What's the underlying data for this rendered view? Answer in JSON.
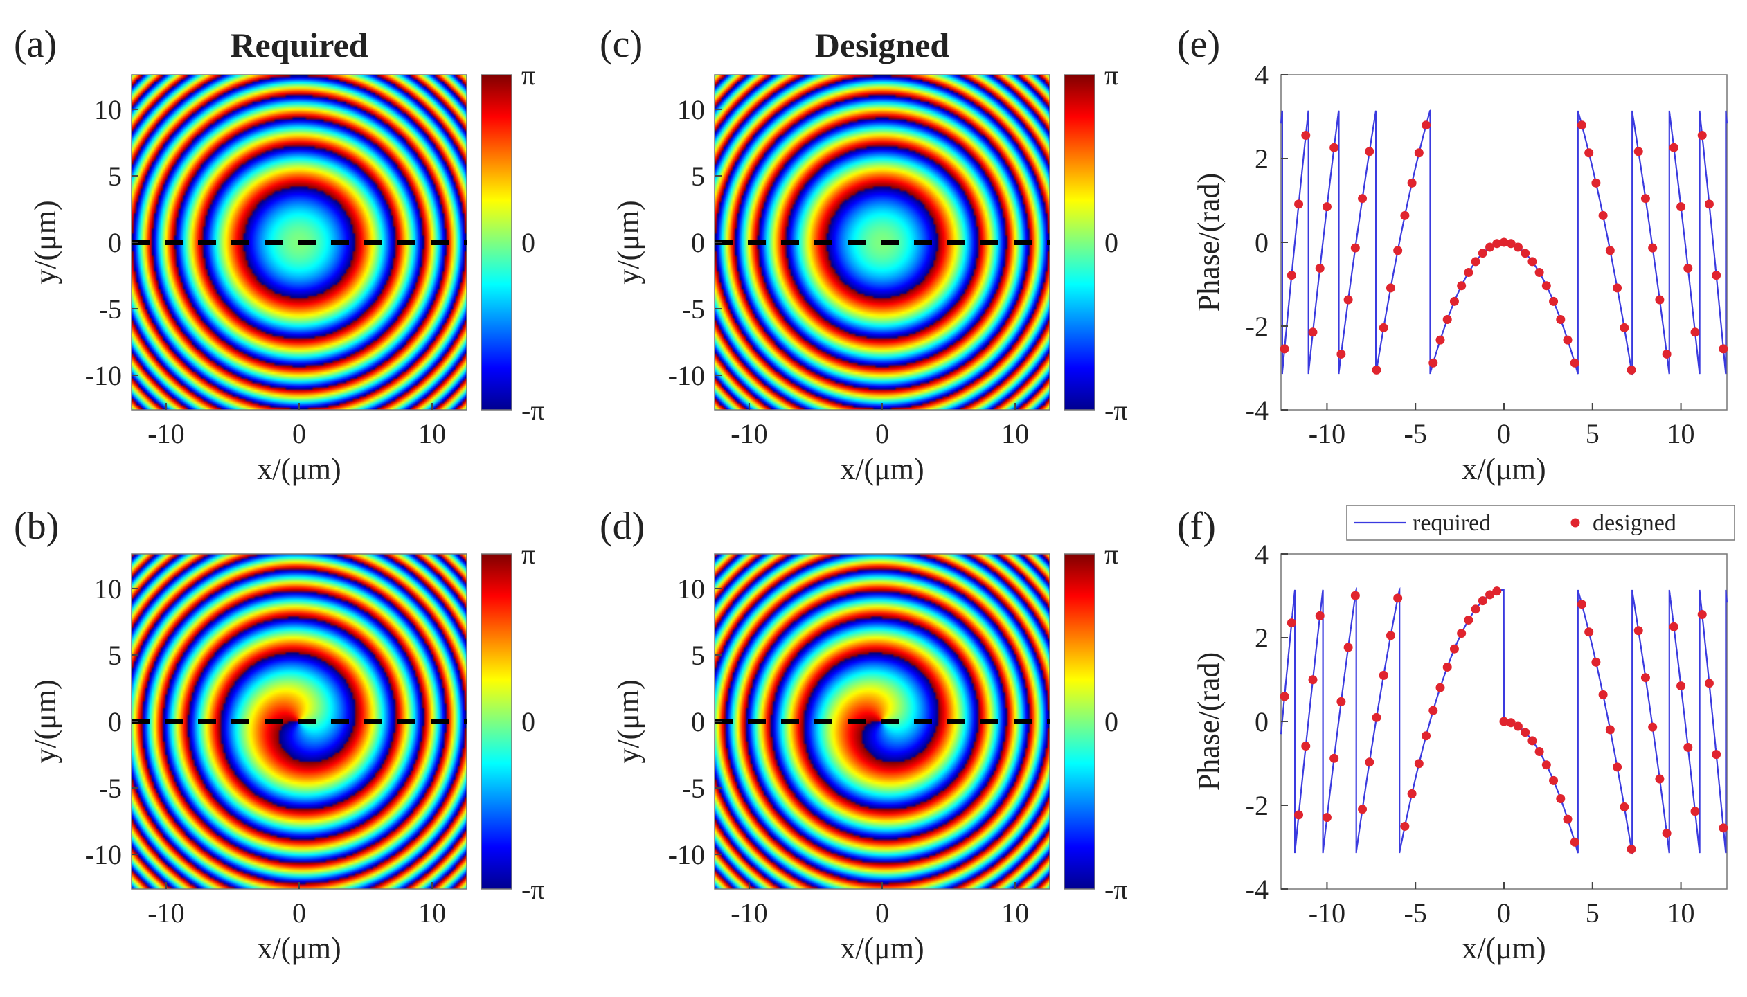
{
  "figure": {
    "panels": {
      "a": {
        "label": "(a)",
        "title": "Required",
        "mode": "lens"
      },
      "b": {
        "label": "(b)",
        "title": "",
        "mode": "vortex"
      },
      "c": {
        "label": "(c)",
        "title": "Designed",
        "mode": "lens"
      },
      "d": {
        "label": "(d)",
        "title": "",
        "mode": "vortex"
      },
      "e": {
        "label": "(e)"
      },
      "f": {
        "label": "(f)"
      }
    },
    "colorbar": {
      "top_label": "π",
      "mid_label": "0",
      "bottom_label": "-π"
    },
    "colors": {
      "line": "#3a3adf",
      "marker": "#e0242e",
      "dash": "#000000"
    }
  },
  "chart_data": [
    {
      "id": "a",
      "type": "heatmap",
      "title": "Required",
      "xlabel": "x/(μm)",
      "ylabel": "y/(μm)",
      "xlim": [
        -12.6,
        12.6
      ],
      "ylim": [
        -12.6,
        12.6
      ],
      "xticks": [
        -10,
        0,
        10
      ],
      "yticks": [
        10,
        5,
        0,
        -5,
        -10
      ],
      "colormap": "jet",
      "clim": [
        "-π",
        "π"
      ],
      "description_values": {
        "focal_profile": "lens",
        "dashed_cut_y": 0
      }
    },
    {
      "id": "b",
      "type": "heatmap",
      "xlabel": "x/(μm)",
      "ylabel": "y/(μm)",
      "xlim": [
        -12.6,
        12.6
      ],
      "ylim": [
        -12.6,
        12.6
      ],
      "xticks": [
        -10,
        0,
        10
      ],
      "yticks": [
        10,
        5,
        0,
        -5,
        -10
      ],
      "colormap": "jet",
      "clim": [
        "-π",
        "π"
      ],
      "description_values": {
        "focal_profile": "vortex",
        "dashed_cut_y": 0
      }
    },
    {
      "id": "c",
      "type": "heatmap",
      "title": "Designed",
      "xlabel": "x/(μm)",
      "ylabel": "y/(μm)",
      "xlim": [
        -12.6,
        12.6
      ],
      "ylim": [
        -12.6,
        12.6
      ],
      "xticks": [
        -10,
        0,
        10
      ],
      "yticks": [
        10,
        5,
        0,
        -5,
        -10
      ],
      "colormap": "jet",
      "clim": [
        "-π",
        "π"
      ],
      "description_values": {
        "focal_profile": "lens",
        "dashed_cut_y": 0
      }
    },
    {
      "id": "d",
      "type": "heatmap",
      "xlabel": "x/(μm)",
      "ylabel": "y/(μm)",
      "xlim": [
        -12.6,
        12.6
      ],
      "ylim": [
        -12.6,
        12.6
      ],
      "xticks": [
        -10,
        0,
        10
      ],
      "yticks": [
        10,
        5,
        0,
        -5,
        -10
      ],
      "colormap": "jet",
      "clim": [
        "-π",
        "π"
      ],
      "description_values": {
        "focal_profile": "vortex",
        "dashed_cut_y": 0
      }
    },
    {
      "id": "e",
      "type": "line",
      "xlabel": "x/(μm)",
      "ylabel": "Phase/(rad)",
      "xlim": [
        -12.6,
        12.6
      ],
      "ylim": [
        -4,
        4
      ],
      "xticks": [
        -10,
        -5,
        0,
        5,
        10
      ],
      "yticks": [
        4,
        2,
        0,
        -2,
        -4
      ],
      "legend": null,
      "series": [
        {
          "name": "required",
          "kind": "line",
          "profile": "lens"
        },
        {
          "name": "designed",
          "kind": "markers",
          "profile": "lens",
          "spacing": 0.4
        }
      ]
    },
    {
      "id": "f",
      "type": "line",
      "xlabel": "x/(μm)",
      "ylabel": "Phase/(rad)",
      "xlim": [
        -12.6,
        12.6
      ],
      "ylim": [
        -4,
        4
      ],
      "xticks": [
        -10,
        -5,
        0,
        5,
        10
      ],
      "yticks": [
        4,
        2,
        0,
        -2,
        -4
      ],
      "legend": "top",
      "series": [
        {
          "name": "required",
          "kind": "line",
          "profile": "vortex"
        },
        {
          "name": "designed",
          "kind": "markers",
          "profile": "vortex",
          "spacing": 0.4
        }
      ]
    }
  ]
}
